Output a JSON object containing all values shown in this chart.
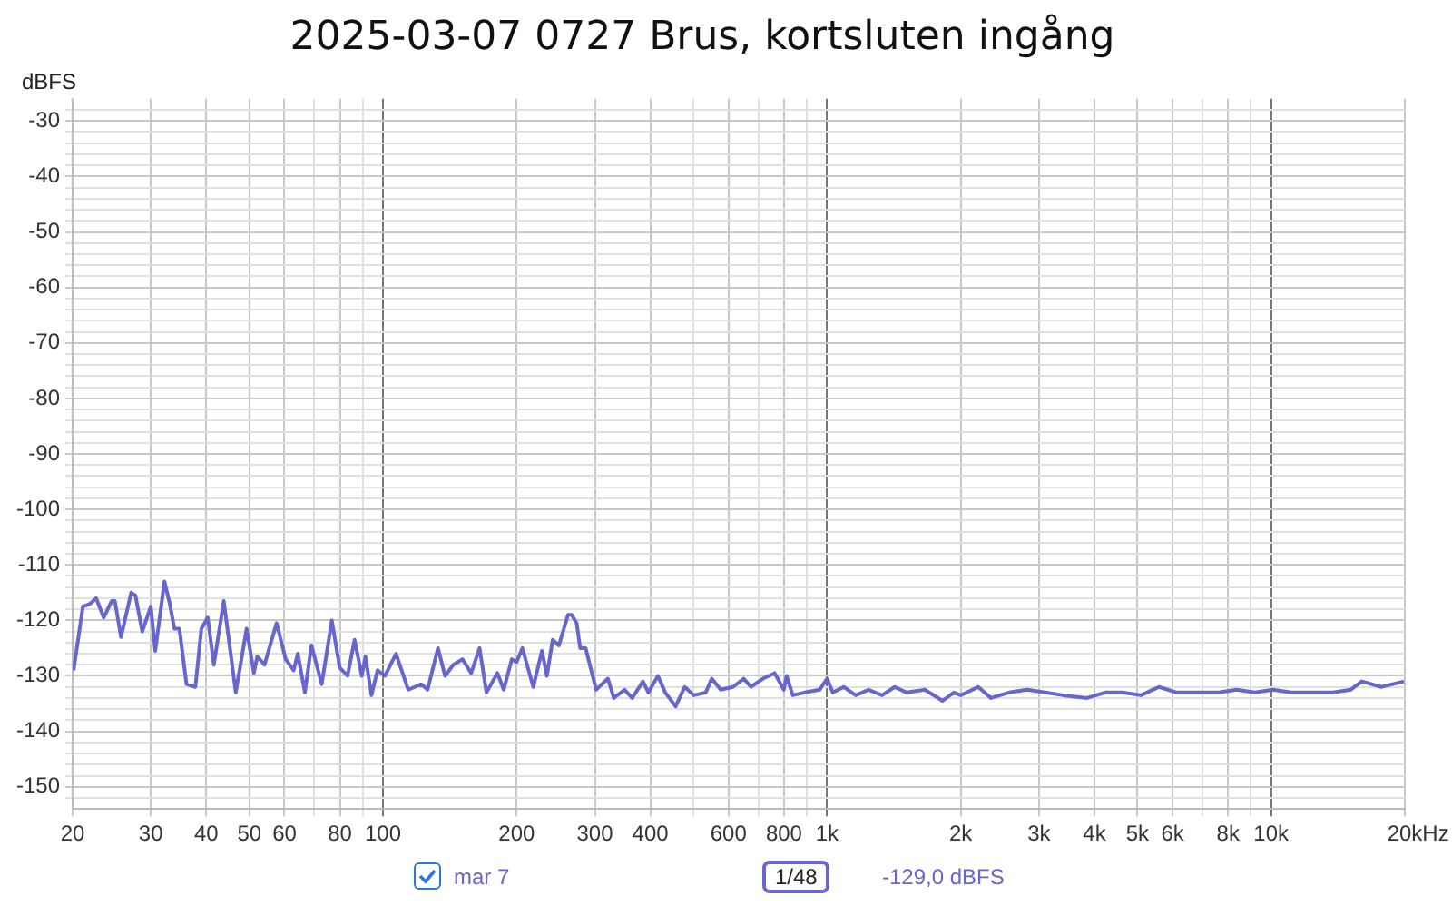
{
  "chart_data": {
    "type": "line",
    "title": "2025-03-07 0727 Brus, kortsluten ingång",
    "ylabel": "dBFS",
    "legend": "bottom",
    "grid": true,
    "log": "x",
    "marker": "none",
    "line_style": "solid",
    "annotations": [
      "1/48",
      "-129,0 dBFS"
    ],
    "xlim": [
      20,
      20000
    ],
    "ylim": [
      -154,
      -26
    ],
    "xticks": [
      20,
      30,
      40,
      50,
      60,
      {
        "value": 70,
        "label": null
      },
      80,
      {
        "value": 90,
        "label": null
      },
      100,
      200,
      300,
      400,
      {
        "value": 500,
        "label": null
      },
      600,
      {
        "value": 700,
        "label": null
      },
      800,
      {
        "value": 900,
        "label": null
      },
      {
        "value": 1000,
        "label": "1k"
      },
      {
        "value": 2000,
        "label": "2k"
      },
      {
        "value": 3000,
        "label": "3k"
      },
      {
        "value": 4000,
        "label": "4k"
      },
      {
        "value": 5000,
        "label": "5k"
      },
      {
        "value": 6000,
        "label": "6k"
      },
      {
        "value": 7000,
        "label": null
      },
      {
        "value": 8000,
        "label": "8k"
      },
      {
        "value": 9000,
        "label": null
      },
      {
        "value": 10000,
        "label": "10k"
      },
      {
        "value": 20000,
        "label": "20k"
      }
    ],
    "xlabel": "Hz",
    "yticks": [
      {
        "value": -28,
        "label": null
      },
      -30,
      {
        "value": -32,
        "label": null
      },
      {
        "value": -34,
        "label": null
      },
      {
        "value": -36,
        "label": null
      },
      {
        "value": -38,
        "label": null
      },
      -40,
      {
        "value": -42,
        "label": null
      },
      {
        "value": -44,
        "label": null
      },
      {
        "value": -46,
        "label": null
      },
      {
        "value": -48,
        "label": null
      },
      -50,
      {
        "value": -52,
        "label": null
      },
      {
        "value": -54,
        "label": null
      },
      {
        "value": -56,
        "label": null
      },
      {
        "value": -58,
        "label": null
      },
      -60,
      {
        "value": -62,
        "label": null
      },
      {
        "value": -64,
        "label": null
      },
      {
        "value": -66,
        "label": null
      },
      {
        "value": -68,
        "label": null
      },
      -70,
      {
        "value": -72,
        "label": null
      },
      {
        "value": -74,
        "label": null
      },
      {
        "value": -76,
        "label": null
      },
      {
        "value": -78,
        "label": null
      },
      -80,
      {
        "value": -82,
        "label": null
      },
      {
        "value": -84,
        "label": null
      },
      {
        "value": -86,
        "label": null
      },
      {
        "value": -88,
        "label": null
      },
      -90,
      {
        "value": -92,
        "label": null
      },
      {
        "value": -94,
        "label": null
      },
      {
        "value": -96,
        "label": null
      },
      {
        "value": -98,
        "label": null
      },
      -100,
      {
        "value": -102,
        "label": null
      },
      {
        "value": -104,
        "label": null
      },
      {
        "value": -106,
        "label": null
      },
      {
        "value": -108,
        "label": null
      },
      -110,
      {
        "value": -112,
        "label": null
      },
      {
        "value": -114,
        "label": null
      },
      {
        "value": -116,
        "label": null
      },
      {
        "value": -118,
        "label": null
      },
      -120,
      {
        "value": -122,
        "label": null
      },
      {
        "value": -124,
        "label": null
      },
      {
        "value": -126,
        "label": null
      },
      {
        "value": -128,
        "label": null
      },
      -130,
      {
        "value": -132,
        "label": null
      },
      {
        "value": -134,
        "label": null
      },
      {
        "value": -136,
        "label": null
      },
      {
        "value": -138,
        "label": null
      },
      -140,
      {
        "value": -142,
        "label": null
      },
      {
        "value": -144,
        "label": null
      },
      {
        "value": -146,
        "label": null
      },
      {
        "value": -148,
        "label": null
      },
      -150,
      {
        "value": -152,
        "label": null
      }
    ],
    "series": [
      {
        "name": "mar 7",
        "color": "#6666cc",
        "x": [
          20.1,
          21.1,
          21.9,
          22.6,
          23.5,
          24.5,
          24.9,
          25.7,
          27.1,
          27.7,
          28.7,
          30.0,
          30.7,
          32.2,
          33.1,
          33.9,
          34.8,
          36.1,
          37.8,
          39.0,
          40.3,
          41.6,
          43.8,
          46.6,
          49.3,
          51.2,
          52.1,
          54.1,
          57.6,
          60.4,
          62.9,
          64.3,
          66.7,
          69.0,
          72.8,
          76.7,
          79.9,
          83.2,
          86.3,
          89.6,
          91.3,
          94.2,
          97.2,
          101,
          107,
          114,
          122,
          126,
          133,
          138,
          144,
          151,
          158,
          165,
          171,
          181,
          187,
          195,
          200,
          206,
          218,
          228,
          234,
          241,
          249,
          261,
          266,
          273,
          278,
          286,
          302,
          321,
          331,
          350,
          364,
          385,
          396,
          416,
          432,
          456,
          478,
          501,
          533,
          550,
          576,
          614,
          649,
          674,
          717,
          762,
          799,
          811,
          837,
          891,
          962,
          1000,
          1030,
          1090,
          1160,
          1240,
          1330,
          1420,
          1510,
          1660,
          1820,
          1930,
          2000,
          2190,
          2340,
          2570,
          2820,
          3100,
          3400,
          3850,
          4230,
          4630,
          5090,
          5590,
          6130,
          6940,
          7620,
          8370,
          9190,
          10100,
          11100,
          12200,
          13800,
          15100,
          16000,
          17700,
          19900
        ],
        "values": [
          -129,
          -117.5,
          -117,
          -116,
          -119.5,
          -116.5,
          -116.5,
          -123,
          -115,
          -115.5,
          -122,
          -117.5,
          -125.5,
          -113,
          -117,
          -121.5,
          -121.5,
          -131.5,
          -132,
          -121.5,
          -119.5,
          -128,
          -116.5,
          -133,
          -121.5,
          -129.5,
          -126.5,
          -128,
          -120.5,
          -127,
          -129,
          -126,
          -133,
          -124.5,
          -131.5,
          -120,
          -128.5,
          -130,
          -123.5,
          -130,
          -126.5,
          -133.5,
          -129,
          -130,
          -126,
          -132.5,
          -131.5,
          -132.5,
          -125,
          -130,
          -128,
          -127,
          -129.5,
          -125,
          -133,
          -129.5,
          -132.5,
          -127,
          -127.5,
          -125,
          -132,
          -125.5,
          -130,
          -123.5,
          -124.5,
          -119,
          -119,
          -120.5,
          -125,
          -125,
          -132.5,
          -130.5,
          -134,
          -132.5,
          -134,
          -131,
          -133,
          -130,
          -133,
          -135.5,
          -132,
          -133.5,
          -133,
          -130.5,
          -132.5,
          -132,
          -130.5,
          -132,
          -130.5,
          -129.5,
          -132.5,
          -130,
          -133.5,
          -133,
          -132.5,
          -130.5,
          -133,
          -132,
          -133.5,
          -132.5,
          -133.5,
          -132,
          -133,
          -132.5,
          -134.5,
          -133,
          -133.5,
          -132,
          -134,
          -133,
          -132.5,
          -133,
          -133.5,
          -134,
          -133,
          -133,
          -133.5,
          -132,
          -133,
          -133,
          -133,
          -132.5,
          -133,
          -132.5,
          -133,
          -133,
          -133,
          -132.5,
          -131,
          -132,
          -131
        ]
      }
    ]
  }
}
